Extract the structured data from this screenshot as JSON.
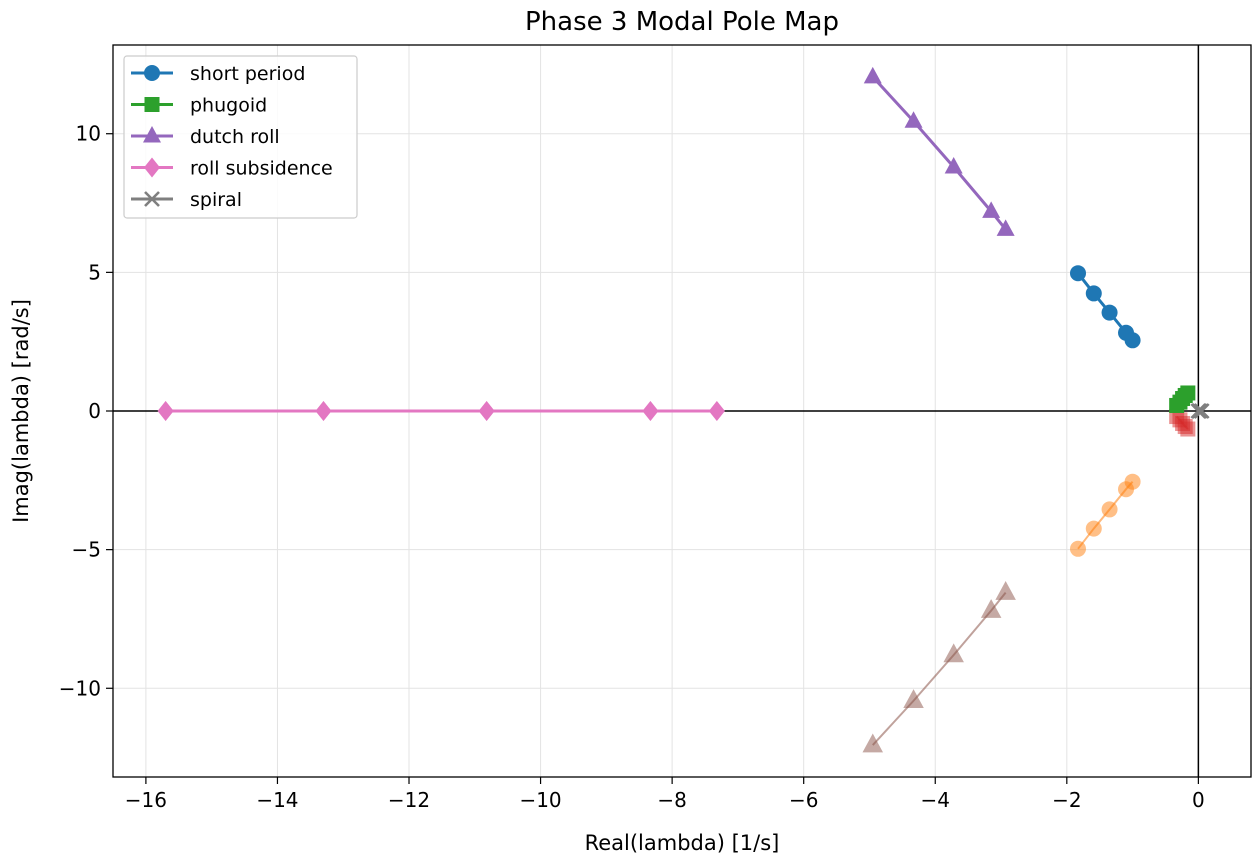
{
  "chart_data": {
    "type": "scatter",
    "title": "Phase 3 Modal Pole Map",
    "xlabel": "Real(lambda) [1/s]",
    "ylabel": "Imag(lambda) [rad/s]",
    "xlim": [
      -16.5,
      0.8
    ],
    "ylim": [
      -13.2,
      13.2
    ],
    "xticks": [
      -16,
      -14,
      -12,
      -10,
      -8,
      -6,
      -4,
      -2,
      0
    ],
    "yticks": [
      -10,
      -5,
      0,
      5,
      10
    ],
    "grid": true,
    "legend_position": "top-left",
    "reference_lines": {
      "x": 0,
      "y": 0,
      "color": "#000000"
    },
    "series": [
      {
        "name": "short period",
        "marker": "circle",
        "color": "#1f77b4",
        "in_legend": true,
        "x": [
          -1.83,
          -1.59,
          -1.35,
          -1.1,
          -1.0
        ],
        "y": [
          4.97,
          4.24,
          3.55,
          2.82,
          2.55
        ]
      },
      {
        "name": "phugoid",
        "marker": "square",
        "color": "#2ca02c",
        "in_legend": true,
        "x": [
          -0.33,
          -0.28,
          -0.24,
          -0.2,
          -0.16
        ],
        "y": [
          0.2,
          0.32,
          0.45,
          0.56,
          0.65
        ]
      },
      {
        "name": "dutch roll",
        "marker": "triangle",
        "color": "#9467bd",
        "in_legend": true,
        "x": [
          -4.95,
          -4.33,
          -3.72,
          -3.15,
          -2.93
        ],
        "y": [
          12.05,
          10.45,
          8.8,
          7.2,
          6.55
        ]
      },
      {
        "name": "roll subsidence",
        "marker": "diamond",
        "color": "#e377c2",
        "in_legend": true,
        "x": [
          -15.7,
          -13.3,
          -10.82,
          -8.33,
          -7.32
        ],
        "y": [
          0,
          0,
          0,
          0,
          0
        ]
      },
      {
        "name": "spiral",
        "marker": "x",
        "color": "#7f7f7f",
        "in_legend": true,
        "x": [
          0.0,
          0.02,
          0.05
        ],
        "y": [
          0,
          0,
          0
        ]
      },
      {
        "name": "",
        "marker": "circle",
        "color": "#ff7f0e",
        "in_legend": false,
        "alpha": 0.45,
        "x": [
          -1.83,
          -1.59,
          -1.35,
          -1.1,
          -1.0
        ],
        "y": [
          -4.97,
          -4.24,
          -3.55,
          -2.82,
          -2.55
        ]
      },
      {
        "name": "",
        "marker": "square",
        "color": "#d62728",
        "in_legend": false,
        "alpha": 0.45,
        "x": [
          -0.33,
          -0.28,
          -0.24,
          -0.2,
          -0.16
        ],
        "y": [
          -0.2,
          -0.32,
          -0.45,
          -0.56,
          -0.65
        ]
      },
      {
        "name": "",
        "marker": "triangle",
        "color": "#8c564b",
        "in_legend": false,
        "alpha": 0.45,
        "x": [
          -4.95,
          -4.33,
          -3.72,
          -3.15,
          -2.93
        ],
        "y": [
          -12.05,
          -10.45,
          -8.8,
          -7.2,
          -6.55
        ]
      },
      {
        "name": "",
        "marker": "diamond",
        "color": "#e377c2",
        "in_legend": false,
        "alpha": 0.45,
        "x": [
          -15.7,
          -13.3,
          -10.82,
          -8.33,
          -7.32
        ],
        "y": [
          0,
          0,
          0,
          0,
          0
        ]
      }
    ]
  }
}
